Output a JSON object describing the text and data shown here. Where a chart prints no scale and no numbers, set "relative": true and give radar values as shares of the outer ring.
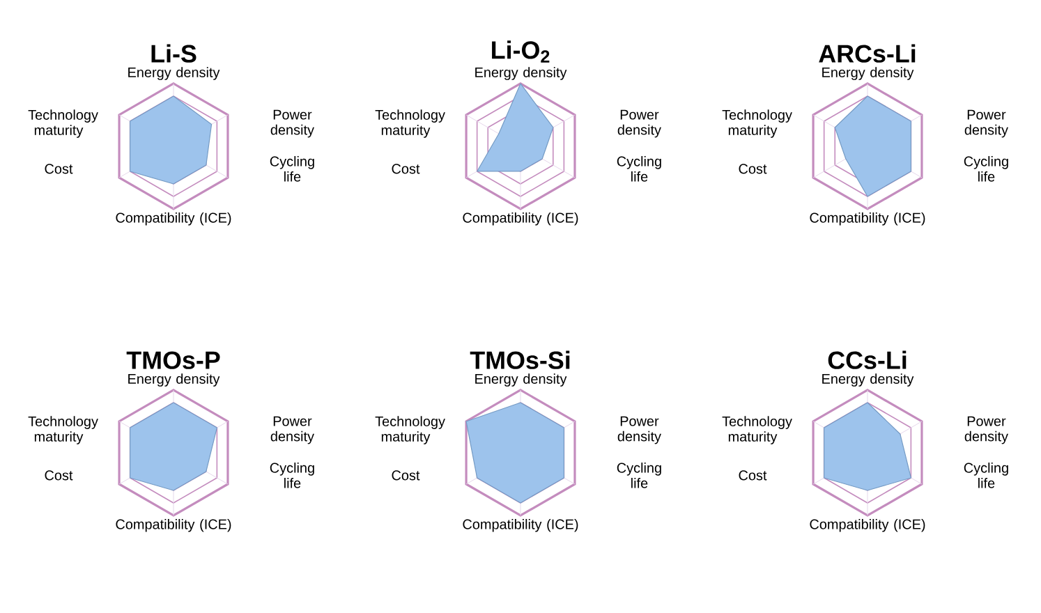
{
  "chart_data": [
    {
      "type": "radar",
      "title": "Li-S",
      "categories": [
        "Energy density",
        "Power density",
        "Cycling life",
        "Compatibility (ICE)",
        "Cost",
        "Technology maturity"
      ],
      "relative": true,
      "grid": true,
      "series": [
        {
          "color": "#9dc3ec",
          "values": [
            0.8,
            0.7,
            0.6,
            0.6,
            0.8,
            0.8
          ]
        }
      ]
    },
    {
      "type": "radar",
      "title": "Li-O$_{2}$",
      "categories": [
        "Energy density",
        "Power density",
        "Cycling life",
        "Compatibility (ICE)",
        "Cost",
        "Technology maturity"
      ],
      "relative": true,
      "grid": true,
      "series": [
        {
          "color": "#9dc3ec",
          "values": [
            1.0,
            0.6,
            0.4,
            0.4,
            0.8,
            0.4
          ]
        }
      ]
    },
    {
      "type": "radar",
      "title": "ARCs-Li",
      "categories": [
        "Energy density",
        "Power density",
        "Cycling life",
        "Compatibility (ICE)",
        "Cost",
        "Technology maturity"
      ],
      "relative": true,
      "grid": true,
      "series": [
        {
          "color": "#9dc3ec",
          "values": [
            0.8,
            0.8,
            0.8,
            0.8,
            0.4,
            0.6
          ]
        }
      ]
    },
    {
      "type": "radar",
      "title": "TMOs-P",
      "categories": [
        "Energy density",
        "Power density",
        "Cycling life",
        "Compatibility (ICE)",
        "Cost",
        "Technology maturity"
      ],
      "relative": true,
      "grid": true,
      "series": [
        {
          "color": "#9dc3ec",
          "values": [
            0.8,
            0.8,
            0.6,
            0.6,
            0.8,
            0.8
          ]
        }
      ]
    },
    {
      "type": "radar",
      "title": "TMOs-Si",
      "categories": [
        "Energy density",
        "Power density",
        "Cycling life",
        "Compatibility (ICE)",
        "Cost",
        "Technology maturity"
      ],
      "relative": true,
      "grid": true,
      "series": [
        {
          "color": "#9dc3ec",
          "values": [
            0.8,
            0.8,
            0.8,
            0.8,
            0.8,
            1.0
          ]
        }
      ]
    },
    {
      "type": "radar",
      "title": "CCs-Li",
      "categories": [
        "Energy density",
        "Power density",
        "Cycling life",
        "Compatibility (ICE)",
        "Cost",
        "Technology maturity"
      ],
      "relative": true,
      "grid": true,
      "series": [
        {
          "color": "#9dc3ec",
          "values": [
            0.8,
            0.6,
            0.8,
            0.6,
            0.8,
            0.8
          ]
        }
      ]
    }
  ]
}
